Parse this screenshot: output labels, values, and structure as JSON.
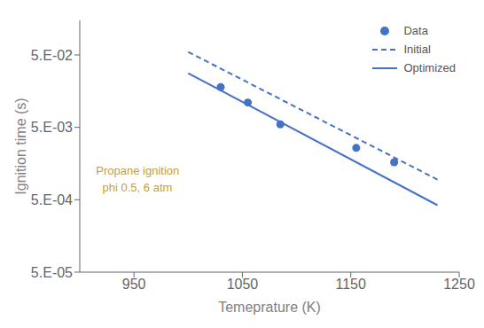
{
  "chart_data": {
    "type": "line",
    "xlabel": "Temeprature (K)",
    "ylabel": "Ignition time (s)",
    "log": "y",
    "grid": false,
    "legend": "upper right",
    "xlim": [
      900,
      1250
    ],
    "xticks": [
      950,
      1050,
      1150,
      1250
    ],
    "ylim": [
      5e-05,
      0.15
    ],
    "yticks": [
      {
        "value": 5e-05,
        "label": "5.E-05"
      },
      {
        "value": 0.0005,
        "label": "5.E-04"
      },
      {
        "value": 0.005,
        "label": "5.E-03"
      },
      {
        "value": 0.05,
        "label": "5.E-02"
      }
    ],
    "series": [
      {
        "name": "Data",
        "type": "scatter",
        "marker": "circle",
        "color": "#4472C4",
        "x": [
          1030,
          1055,
          1085,
          1155,
          1190
        ],
        "values": [
          0.018,
          0.011,
          0.0055,
          0.0026,
          0.00165
        ]
      },
      {
        "name": "Initial",
        "type": "line",
        "line_style": "dashed",
        "color": "#4472C4",
        "x": [
          1000,
          1230
        ],
        "values": [
          0.055,
          0.00095
        ]
      },
      {
        "name": "Optimized",
        "type": "line",
        "line_style": "solid",
        "color": "#4472C4",
        "x": [
          1000,
          1230
        ],
        "values": [
          0.028,
          0.00042
        ]
      }
    ],
    "annotations": [
      {
        "text": "Propane ignition",
        "x": 915,
        "y": 0.0011,
        "color": "#C0A040"
      },
      {
        "text": "  phi 0.5, 6 atm",
        "x": 915,
        "y": 0.00065,
        "color": "#C0A040"
      }
    ]
  }
}
